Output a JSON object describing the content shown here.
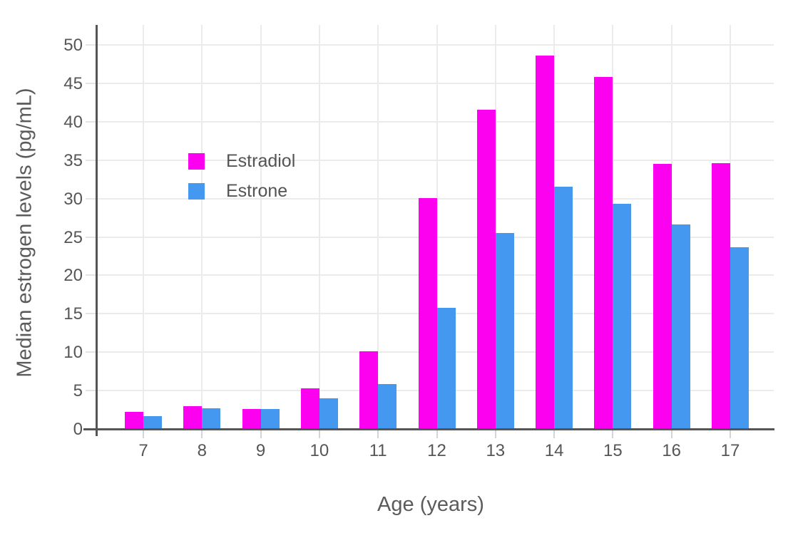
{
  "chart_data": {
    "type": "bar",
    "title": "",
    "xlabel": "Age (years)",
    "ylabel": "Median estrogen levels (pg/mL)",
    "categories": [
      "7",
      "8",
      "9",
      "10",
      "11",
      "12",
      "13",
      "14",
      "15",
      "16",
      "17"
    ],
    "series": [
      {
        "name": "Estradiol",
        "color": "#fc00f0",
        "values": [
          2.2,
          3.0,
          2.6,
          5.3,
          10.1,
          30.1,
          41.6,
          48.6,
          45.8,
          34.5,
          34.6
        ]
      },
      {
        "name": "Estrone",
        "color": "#4598ef",
        "values": [
          1.7,
          2.7,
          2.6,
          4.0,
          5.8,
          15.8,
          25.5,
          31.5,
          29.3,
          26.6,
          23.7
        ]
      }
    ],
    "ylim": [
      0,
      52.6
    ],
    "yticks": [
      0,
      5,
      10,
      15,
      20,
      25,
      30,
      35,
      40,
      45,
      50
    ],
    "grid": true,
    "legend_position": "inside-upper-left",
    "colors": {
      "grid": "#ebebeb",
      "axis": "#555555",
      "tick_text": "#565656",
      "title_text": "#5b5b5b",
      "background": "#ffffff"
    }
  }
}
